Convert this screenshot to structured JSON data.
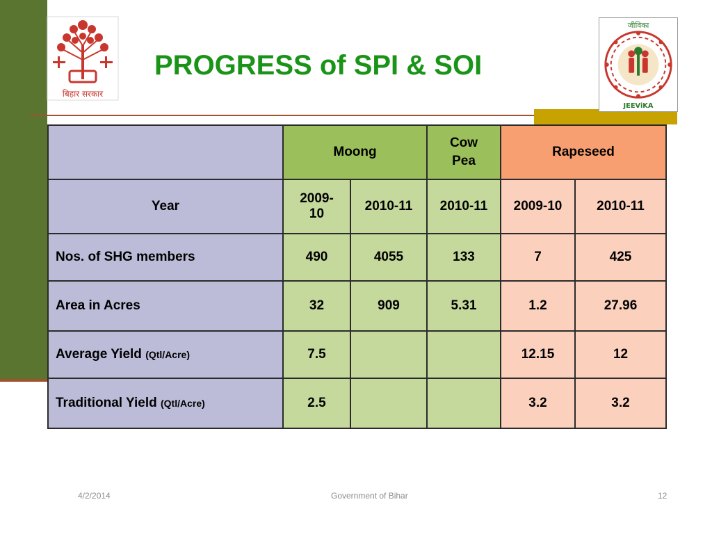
{
  "header": {
    "title": "PROGRESS of SPI & SOI",
    "left_logo_text": "बिहार सरकार",
    "right_logo_top_text": "जीविका",
    "right_logo_bottom_text": "JEEViKA"
  },
  "table": {
    "groups": {
      "moong": "Moong",
      "cowpea": "Cow Pea",
      "rapeseed": "Rapeseed"
    },
    "year_label": "Year",
    "years": [
      "2009-10",
      "2010-11",
      "2010-11",
      "2009-10",
      "2010-11"
    ],
    "rows": [
      {
        "label": "Nos. of SHG members",
        "unit": "",
        "values": [
          "490",
          "4055",
          "133",
          "7",
          "425"
        ]
      },
      {
        "label": "Area in Acres",
        "unit": "",
        "values": [
          "32",
          "909",
          "5.31",
          "1.2",
          "27.96"
        ]
      },
      {
        "label": "Average Yield",
        "unit": "(Qtl/Acre)",
        "values": [
          "7.5",
          "",
          "",
          "12.15",
          "12"
        ]
      },
      {
        "label": "Traditional Yield",
        "unit": "(Qtl/Acre)",
        "values": [
          "2.5",
          "",
          "",
          "3.2",
          "3.2"
        ]
      }
    ]
  },
  "footer": {
    "date": "4/2/2014",
    "center": "Government of Bihar",
    "page": "12"
  },
  "colors": {
    "title": "#1a9418",
    "sidebar": "#5a7530",
    "label_col": "#bcbcd9",
    "green_header": "#9bbf5a",
    "green_cell": "#c5d99c",
    "rapeseed_header": "#f79f71",
    "peach_cell": "#fbd0bc"
  }
}
